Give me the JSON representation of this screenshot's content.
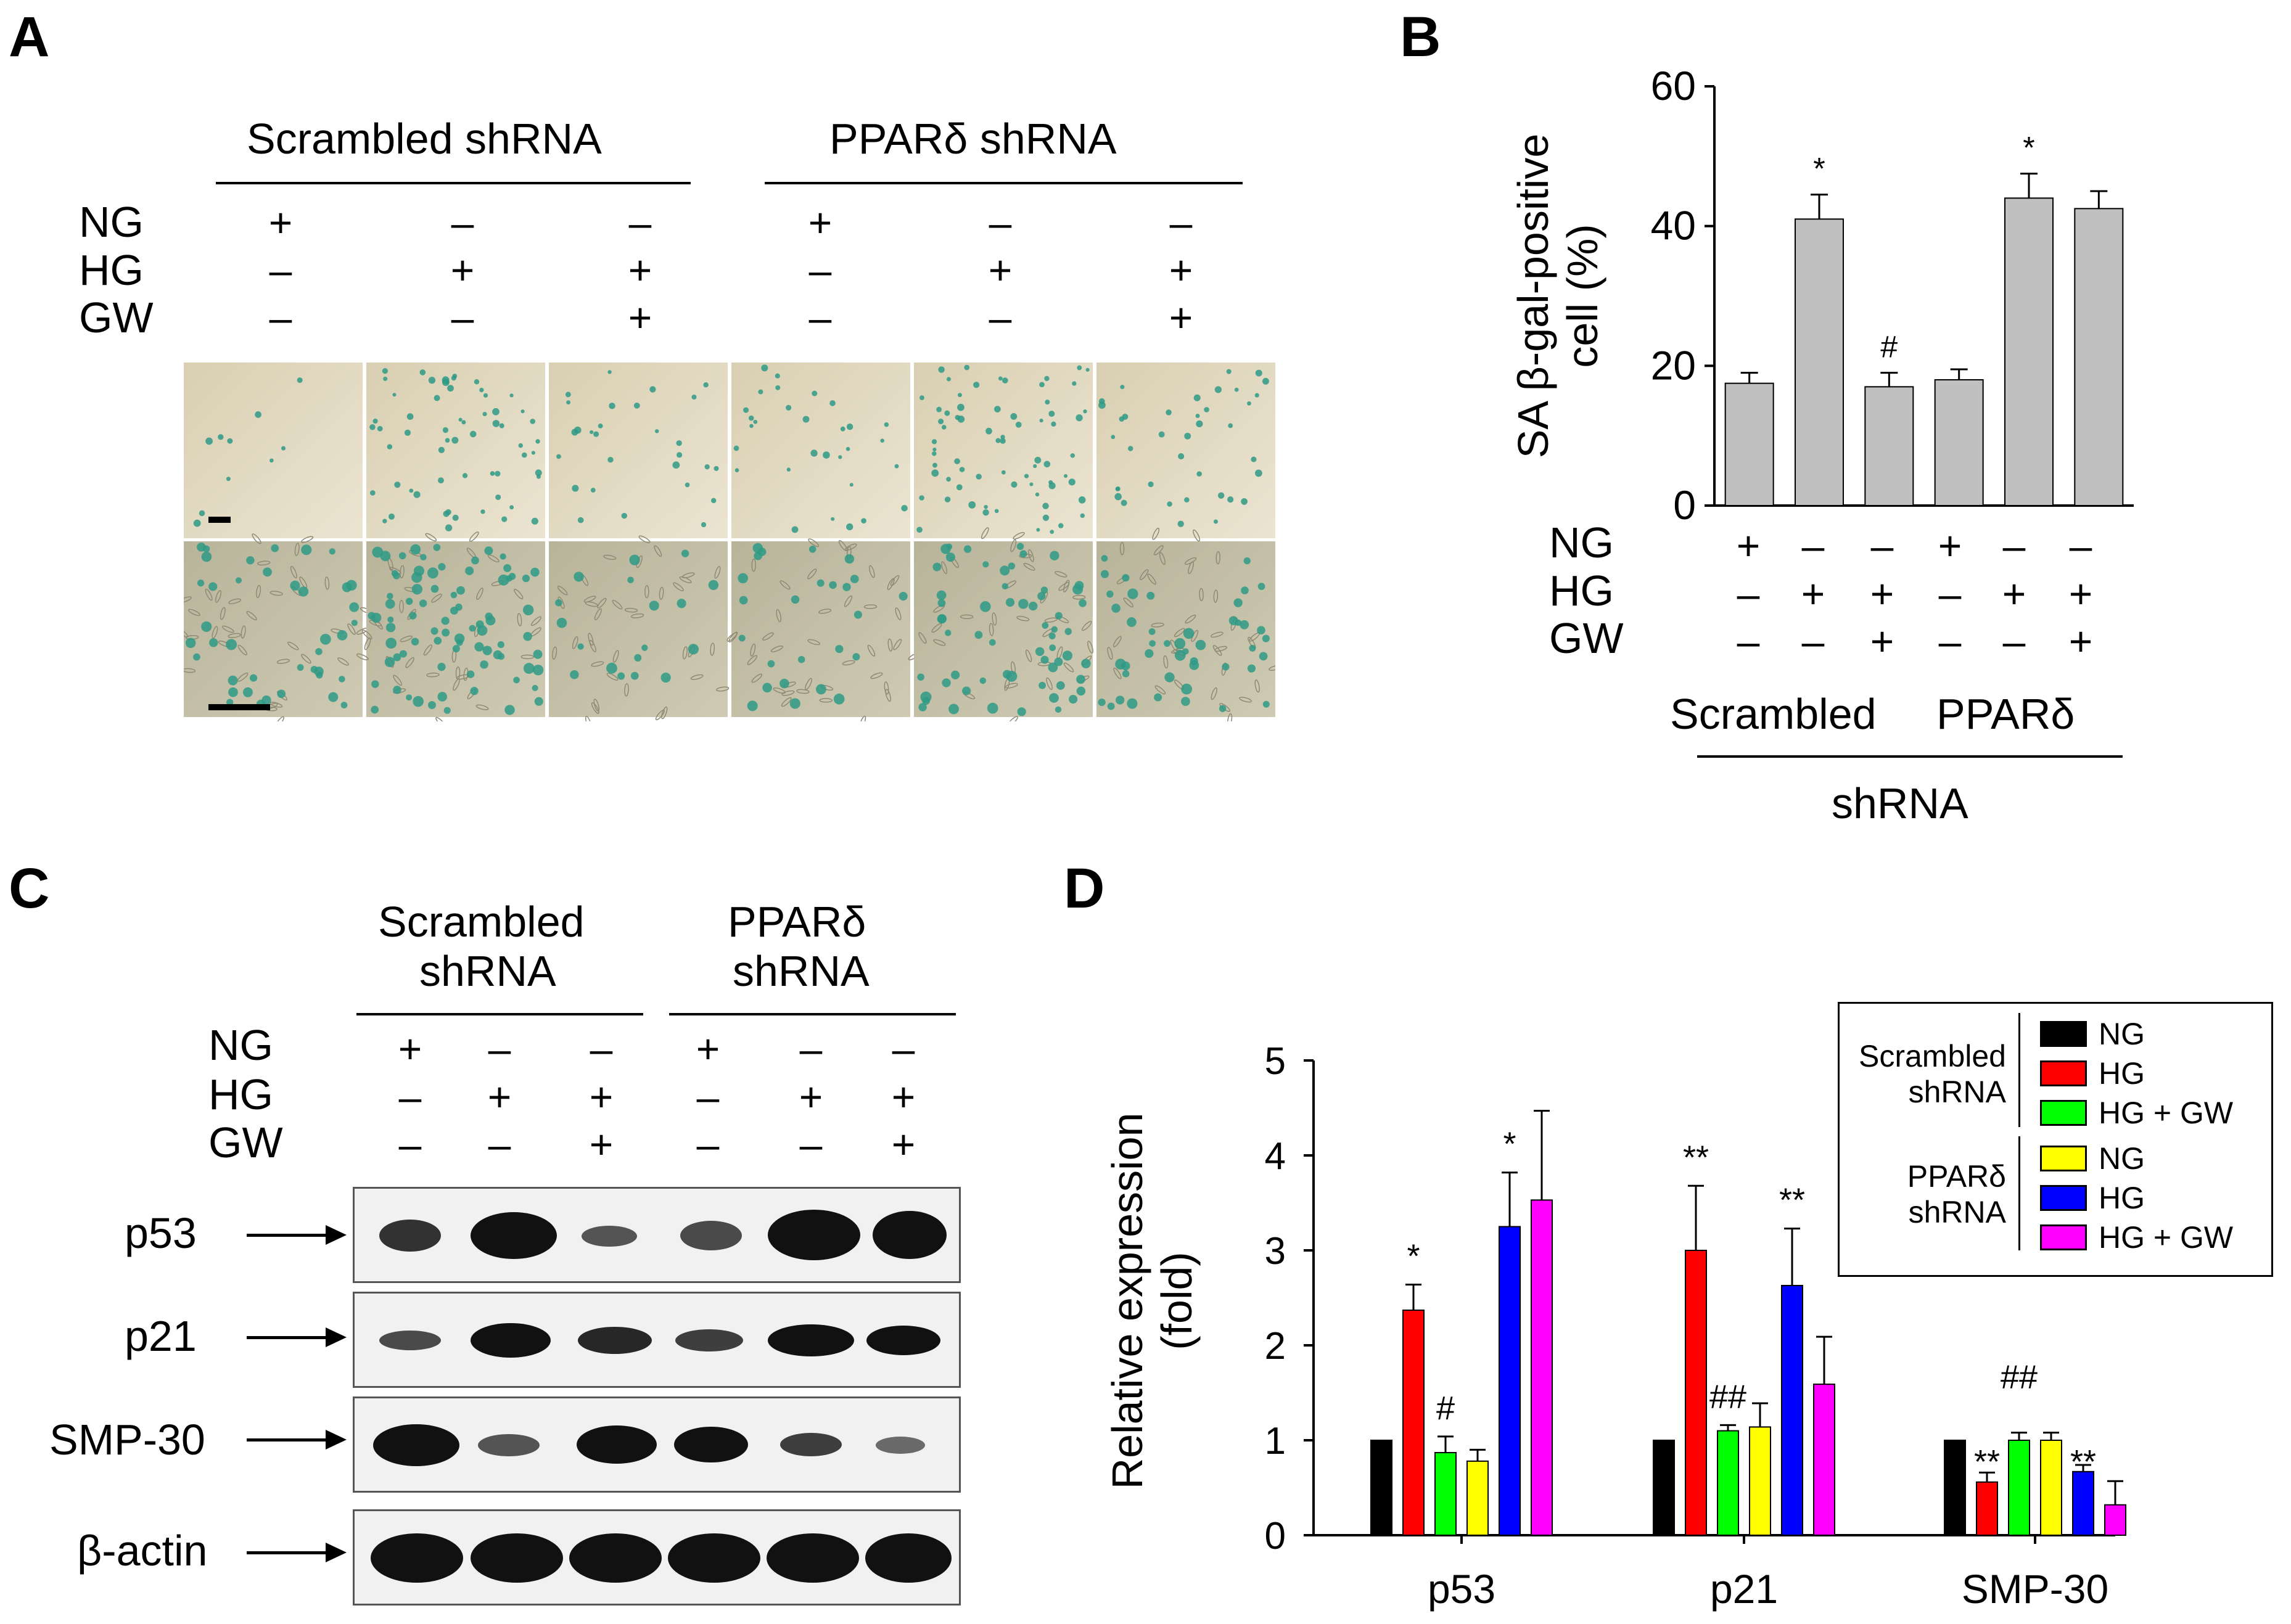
{
  "panelA": {
    "letter": "A",
    "group1": "Scrambled shRNA",
    "group2": "PPARδ shRNA",
    "rows": [
      "NG",
      "HG",
      "GW"
    ],
    "signs": [
      [
        "+",
        "–",
        "–",
        "+",
        "–",
        "–"
      ],
      [
        "–",
        "+",
        "+",
        "–",
        "+",
        "+"
      ],
      [
        "–",
        "–",
        "+",
        "–",
        "–",
        "+"
      ]
    ]
  },
  "panelB": {
    "letter": "B",
    "rows": [
      "NG",
      "HG",
      "GW"
    ],
    "signs": [
      [
        "+",
        "–",
        "–",
        "+",
        "–",
        "–"
      ],
      [
        "–",
        "+",
        "+",
        "–",
        "+",
        "+"
      ],
      [
        "–",
        "–",
        "+",
        "–",
        "–",
        "+"
      ]
    ],
    "group1": "Scrambled",
    "group2": "PPARδ",
    "group_caption": "shRNA"
  },
  "panelC": {
    "letter": "C",
    "group1_line1": "Scrambled",
    "group1_line2": "shRNA",
    "group2_line1": "PPARδ",
    "group2_line2": "shRNA",
    "rows": [
      "NG",
      "HG",
      "GW"
    ],
    "signs": [
      [
        "+",
        "–",
        "–",
        "+",
        "–",
        "–"
      ],
      [
        "–",
        "+",
        "+",
        "–",
        "+",
        "+"
      ],
      [
        "–",
        "–",
        "+",
        "–",
        "–",
        "+"
      ]
    ],
    "blots": [
      "p53",
      "p21",
      "SMP-30",
      "β-actin"
    ]
  },
  "panelD": {
    "letter": "D",
    "legend": {
      "group1_line1": "Scrambled",
      "group1_line2": "shRNA",
      "group2_line1": "PPARδ",
      "group2_line2": "shRNA",
      "entries": [
        "NG",
        "HG",
        "HG + GW",
        "NG",
        "HG",
        "HG + GW"
      ]
    }
  },
  "chart_data": [
    {
      "type": "bar",
      "panel": "B",
      "ylabel_line1": "SA β-gal-positive",
      "ylabel_line2": "cell (%)",
      "ylim": [
        0,
        60
      ],
      "yticks": [
        "0",
        "20",
        "40",
        "60"
      ],
      "categories": [
        "Scrambled NG",
        "Scrambled HG",
        "Scrambled HG+GW",
        "PPARδ NG",
        "PPARδ HG",
        "PPARδ HG+GW"
      ],
      "values": [
        17.5,
        41,
        17,
        18,
        44,
        42.5
      ],
      "errors": [
        1.5,
        3.5,
        2,
        1.5,
        3.5,
        2.5
      ],
      "annotations": [
        "",
        "*",
        "#",
        "",
        "*",
        ""
      ],
      "bar_color": "#c0c0c0"
    },
    {
      "type": "bar",
      "panel": "D",
      "ylabel_line1": "Relative expression",
      "ylabel_line2": "(fold)",
      "ylim": [
        0,
        5
      ],
      "yticks": [
        "0",
        "1",
        "2",
        "3",
        "4",
        "5"
      ],
      "categories": [
        "p53",
        "p21",
        "SMP-30"
      ],
      "series": [
        {
          "color": "#000000",
          "values": [
            1,
            1,
            1
          ],
          "errors": [
            0,
            0,
            0
          ],
          "annotations": [
            "",
            "",
            ""
          ]
        },
        {
          "color": "#ff0000",
          "values": [
            2.37,
            3.0,
            0.56
          ],
          "errors": [
            0.27,
            0.68,
            0.1
          ],
          "annotations": [
            "*",
            "**",
            "**"
          ]
        },
        {
          "color": "#00ff00",
          "values": [
            0.87,
            1.1,
            1.0
          ],
          "errors": [
            0.17,
            0.06,
            0.08
          ],
          "annotations": [
            "#",
            "##",
            "##"
          ]
        },
        {
          "color": "#ffff00",
          "values": [
            0.78,
            1.14,
            1.0
          ],
          "errors": [
            0.12,
            0.25,
            0.08
          ],
          "annotations": [
            "",
            "",
            ""
          ]
        },
        {
          "color": "#0000ff",
          "values": [
            3.25,
            2.63,
            0.67
          ],
          "errors": [
            0.57,
            0.6,
            0.07
          ],
          "annotations": [
            "*",
            "**",
            "**"
          ]
        },
        {
          "color": "#ff00ff",
          "values": [
            3.53,
            1.59,
            0.32
          ],
          "errors": [
            0.94,
            0.5,
            0.25
          ],
          "annotations": [
            "",
            "",
            ""
          ]
        }
      ]
    }
  ]
}
